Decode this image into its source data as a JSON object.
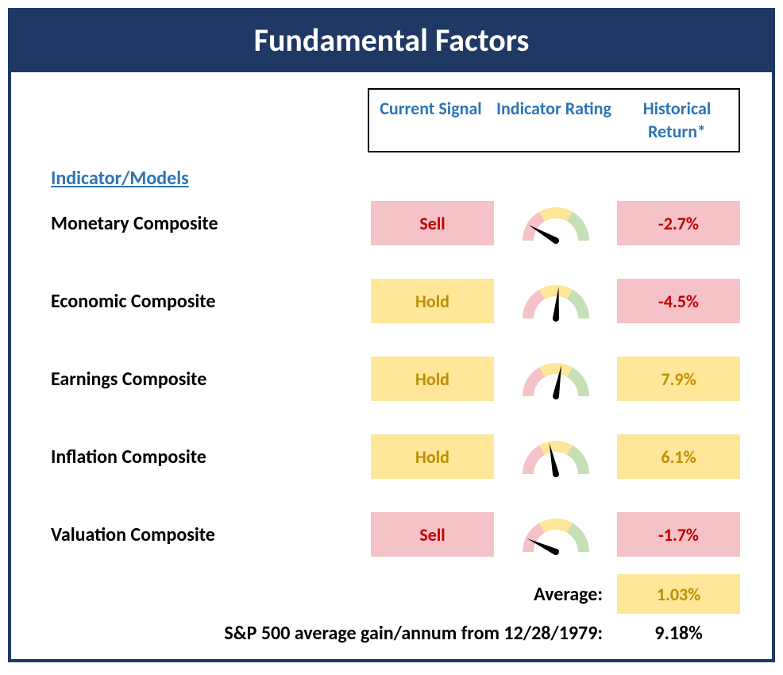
{
  "title": "Fundamental Factors",
  "columns": {
    "signal": "Current Signal",
    "rating": "Indicator Rating",
    "return": "Historical Return*"
  },
  "section_label": "Indicator/Models",
  "signal_styles": {
    "Sell": {
      "bg": "#f5c2c7",
      "fg": "#c00000"
    },
    "Hold": {
      "bg": "#ffe699",
      "fg": "#bf8f00"
    }
  },
  "gauge": {
    "arc_colors": [
      "#f5c2c7",
      "#ffe699",
      "#c5e0b4"
    ],
    "arc_width": 14,
    "needle_color": "#000000"
  },
  "rows": [
    {
      "label": "Monetary Composite",
      "signal": "Sell",
      "needle_angle": -60,
      "return": "-2.7%",
      "return_sign": "neg"
    },
    {
      "label": "Economic Composite",
      "signal": "Hold",
      "needle_angle": 5,
      "return": "-4.5%",
      "return_sign": "neg"
    },
    {
      "label": "Earnings Composite",
      "signal": "Hold",
      "needle_angle": 10,
      "return": "7.9%",
      "return_sign": "pos"
    },
    {
      "label": "Inflation Composite",
      "signal": "Hold",
      "needle_angle": -12,
      "return": "6.1%",
      "return_sign": "pos"
    },
    {
      "label": "Valuation Composite",
      "signal": "Sell",
      "needle_angle": -65,
      "return": "-1.7%",
      "return_sign": "neg"
    }
  ],
  "footer": {
    "average_label": "Average:",
    "average_value": "1.03%",
    "average_sign": "pos",
    "sp_label": "S&P 500 average gain/annum from 12/28/1979:",
    "sp_value": "9.18%"
  },
  "colors": {
    "border": "#1f3864",
    "header_text": "#2e74b5",
    "body_text": "#000000",
    "background": "#ffffff"
  },
  "typography": {
    "title_fontsize": 40,
    "header_fontsize": 22,
    "row_label_fontsize": 24,
    "cell_fontsize": 22,
    "footer_fontsize": 24,
    "font_family": "Calibri, Arial, sans-serif"
  }
}
